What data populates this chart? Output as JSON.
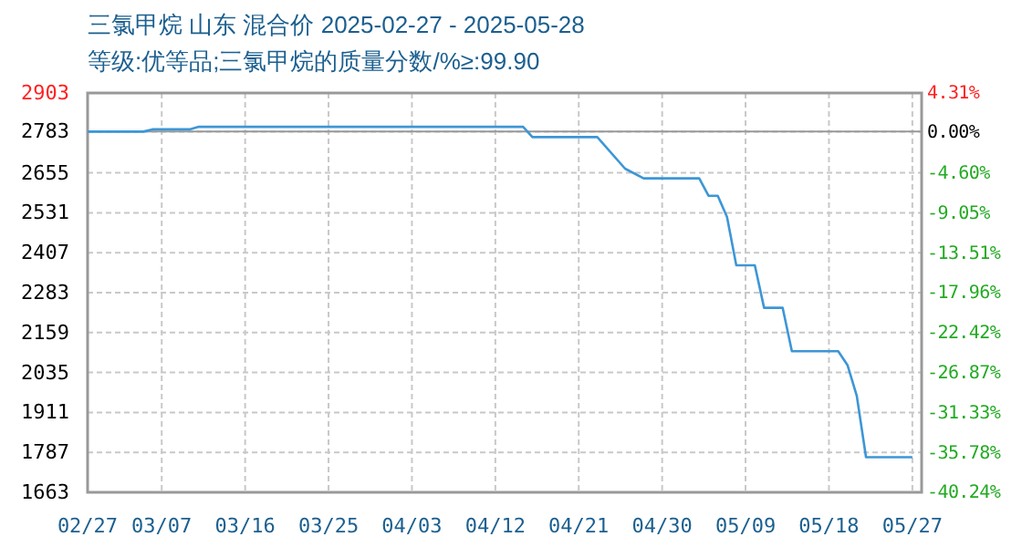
{
  "chart_data": {
    "type": "line",
    "title": "三氯甲烷 山东 混合价 2025-02-27 - 2025-05-28",
    "subtitle": "等级:优等品;三氯甲烷的质量分数/%≥:99.90",
    "x": [
      "2025-02-27",
      "2025-03-05",
      "2025-03-06",
      "2025-03-10",
      "2025-03-11",
      "2025-04-15",
      "2025-04-16",
      "2025-04-23",
      "2025-04-26",
      "2025-04-28",
      "2025-05-04",
      "2025-05-05",
      "2025-05-06",
      "2025-05-07",
      "2025-05-08",
      "2025-05-10",
      "2025-05-11",
      "2025-05-13",
      "2025-05-14",
      "2025-05-19",
      "2025-05-20",
      "2025-05-21",
      "2025-05-22",
      "2025-05-27"
    ],
    "series": [
      {
        "color": "#3d96d6",
        "values": [
          2783,
          2783,
          2790,
          2790,
          2798,
          2798,
          2766,
          2766,
          2668,
          2638,
          2638,
          2584,
          2584,
          2518,
          2368,
          2368,
          2236,
          2236,
          2101,
          2101,
          2058,
          1963,
          1772,
          1772
        ]
      }
    ],
    "xlim": [
      "2025-02-27",
      "2025-05-28"
    ],
    "xticks": [
      {
        "value": "2025-02-27",
        "label": "02/27"
      },
      {
        "value": "2025-03-07",
        "label": "03/07"
      },
      {
        "value": "2025-03-16",
        "label": "03/16"
      },
      {
        "value": "2025-03-25",
        "label": "03/25"
      },
      {
        "value": "2025-04-03",
        "label": "04/03"
      },
      {
        "value": "2025-04-12",
        "label": "04/12"
      },
      {
        "value": "2025-04-21",
        "label": "04/21"
      },
      {
        "value": "2025-04-30",
        "label": "04/30"
      },
      {
        "value": "2025-05-09",
        "label": "05/09"
      },
      {
        "value": "2025-05-18",
        "label": "05/18"
      },
      {
        "value": "2025-05-27",
        "label": "05/27"
      }
    ],
    "ylim": [
      1663,
      2903
    ],
    "yticks": [
      1663,
      1787,
      1911,
      2035,
      2159,
      2283,
      2407,
      2531,
      2655,
      2783,
      2903
    ],
    "y2lim": [
      -40.24,
      4.31
    ],
    "y2ticks": [
      {
        "value": -40.24,
        "label": "-40.24%"
      },
      {
        "value": -35.78,
        "label": "-35.78%"
      },
      {
        "value": -31.33,
        "label": "-31.33%"
      },
      {
        "value": -26.87,
        "label": "-26.87%"
      },
      {
        "value": -22.42,
        "label": "-22.42%"
      },
      {
        "value": -17.96,
        "label": "-17.96%"
      },
      {
        "value": -13.51,
        "label": "-13.51%"
      },
      {
        "value": -9.05,
        "label": "-9.05%"
      },
      {
        "value": -4.6,
        "label": "-4.60%"
      },
      {
        "value": 0,
        "label": "0.00%"
      },
      {
        "value": 4.31,
        "label": "4.31%"
      }
    ],
    "grid": true,
    "marker": "none",
    "line_style": "solid"
  }
}
